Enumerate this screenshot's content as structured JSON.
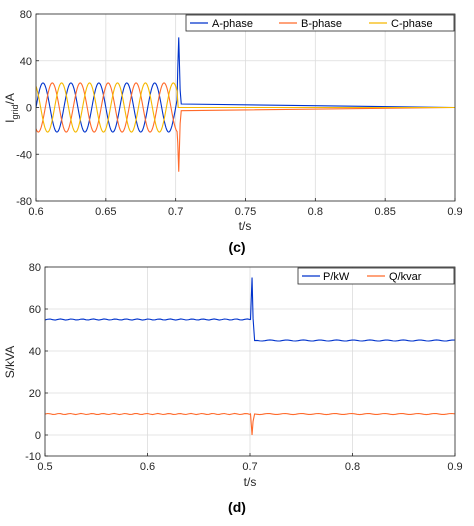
{
  "figure": {
    "caption_c": "(c)",
    "caption_d": "(d)"
  },
  "chart_data": [
    {
      "type": "line",
      "panel": "(c)",
      "xlabel": "t/s",
      "ylabel_main": "I",
      "ylabel_sub": "grid",
      "ylabel_unit": "/A",
      "xlim": [
        0.6,
        0.9
      ],
      "ylim": [
        -80,
        80
      ],
      "xticks": [
        0.6,
        0.65,
        0.7,
        0.75,
        0.8,
        0.85,
        0.9
      ],
      "xtick_labels": [
        "0.6",
        "0.65",
        "0.7",
        "0.75",
        "0.8",
        "0.85",
        "0.9"
      ],
      "yticks": [
        -80,
        -40,
        0,
        40,
        80
      ],
      "ytick_labels": [
        "-80",
        "-40",
        "0",
        "40",
        "80"
      ],
      "grid": true,
      "legend_position": "top-right",
      "amplitude": 21,
      "frequency_hz": 50,
      "fault_time": 0.701,
      "series": [
        {
          "name": "A-phase",
          "color": "#0033cc",
          "phase_deg": 0,
          "transient_peak": 60
        },
        {
          "name": "B-phase",
          "color": "#ff6a2b",
          "phase_deg": -120,
          "transient_peak": -55
        },
        {
          "name": "C-phase",
          "color": "#f5b800",
          "phase_deg": 120,
          "transient_peak": 0
        }
      ],
      "after_fault_value": 0
    },
    {
      "type": "line",
      "panel": "(d)",
      "xlabel": "t/s",
      "ylabel": "S/kVA",
      "xlim": [
        0.5,
        0.9
      ],
      "ylim": [
        -10,
        80
      ],
      "xticks": [
        0.5,
        0.6,
        0.7,
        0.8,
        0.9
      ],
      "xtick_labels": [
        "0.5",
        "0.6",
        "0.7",
        "0.8",
        "0.9"
      ],
      "yticks": [
        -10,
        0,
        20,
        40,
        60,
        80
      ],
      "ytick_labels": [
        "-10",
        "0",
        "20",
        "40",
        "60",
        "80"
      ],
      "grid": true,
      "legend_position": "top-right",
      "fault_time": 0.701,
      "series": [
        {
          "name": "P/kW",
          "color": "#0033cc",
          "before": 55,
          "spike_peak": 75,
          "after": 45
        },
        {
          "name": "Q/kvar",
          "color": "#ff6a2b",
          "before": 10,
          "spike_peak": 0,
          "after": 10
        }
      ]
    }
  ]
}
